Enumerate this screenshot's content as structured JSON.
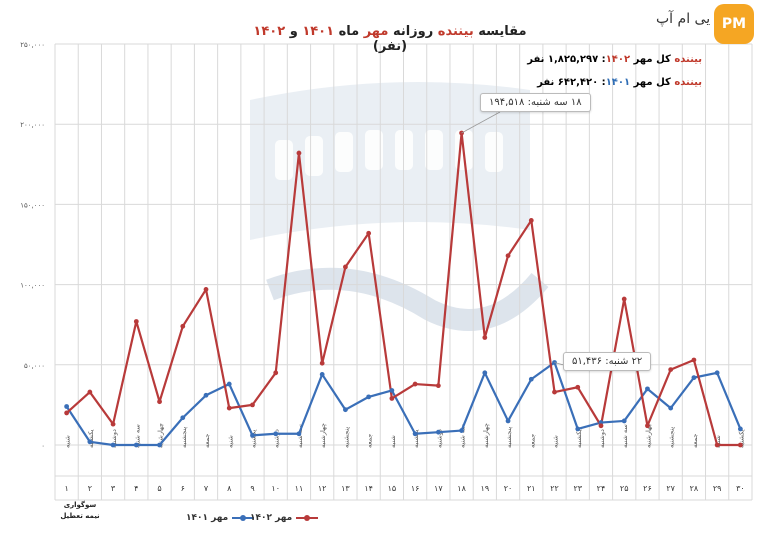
{
  "header": {
    "logo_text": "یی ام آپ",
    "logo_badge": "PM",
    "title_part1": "مقایسه ",
    "title_part2": "بیننده",
    "title_part3": " روزانه ",
    "title_part4": "مهر",
    "title_part5": " ماه ",
    "title_part6": "۱۴۰۱",
    "title_part7": " و ",
    "title_part8": "۱۴۰۲",
    "title_part9": " (نفر)"
  },
  "totals": {
    "total_1402_label": "بیننده",
    "total_1402_text": " کل مهر ",
    "total_1402_year": "۱۴۰۲",
    "total_1402_value": ": ۱,۸۲۵,۲۹۷ نفر",
    "total_1401_label": "بیننده",
    "total_1401_text": " کل مهر ",
    "total_1401_year": "۱۴۰۱",
    "total_1401_value": ": ۶۴۲,۴۲۰ نفر"
  },
  "callouts": {
    "max_1402": "۱۸ سه شنبه: ۱۹۴,۵۱۸",
    "max_1401": "۲۲ شنبه: ۵۱,۴۳۶"
  },
  "holiday": {
    "line1": "سوگواری",
    "line2": "نیمه تعطیل"
  },
  "legend": {
    "s1401": "مهر ۱۴۰۱",
    "s1402": "مهر ۱۴۰۲"
  },
  "colors": {
    "s1401": "#3a6fb8",
    "s1402": "#b83a3a",
    "grid": "#d9d9d9",
    "accent_red": "#c0392b",
    "watermark": "#dfe6ee"
  },
  "chart_data": {
    "type": "line",
    "ylim": [
      0,
      250000
    ],
    "yticks": [
      "۰",
      "۵۰,۰۰۰",
      "۱۰۰,۰۰۰",
      "۱۵۰,۰۰۰",
      "۲۰۰,۰۰۰",
      "۲۵۰,۰۰۰"
    ],
    "ytick_values": [
      0,
      50000,
      100000,
      150000,
      200000,
      250000
    ],
    "weekdays": [
      "شنبه",
      "یکشنبه",
      "دوشنبه",
      "سه شنبه",
      "چهارشنبه",
      "پنجشنبه",
      "جمعه",
      "شنبه",
      "یکشنبه",
      "دوشنبه",
      "سه شنبه",
      "چهارشنبه",
      "پنجشنبه",
      "جمعه",
      "شنبه",
      "یکشنبه",
      "دوشنبه",
      "سه شنبه",
      "چهارشنبه",
      "پنجشنبه",
      "جمعه",
      "شنبه",
      "یکشنبه",
      "دوشنبه",
      "سه شنبه",
      "چهارشنبه",
      "پنجشنبه",
      "جمعه",
      "شنبه",
      "یکشنبه"
    ],
    "days": [
      "۱",
      "۲",
      "۳",
      "۴",
      "۵",
      "۶",
      "۷",
      "۸",
      "۹",
      "۱۰",
      "۱۱",
      "۱۲",
      "۱۳",
      "۱۴",
      "۱۵",
      "۱۶",
      "۱۷",
      "۱۸",
      "۱۹",
      "۲۰",
      "۲۱",
      "۲۲",
      "۲۳",
      "۲۴",
      "۲۵",
      "۲۶",
      "۲۷",
      "۲۸",
      "۲۹",
      "۳۰"
    ],
    "series": [
      {
        "name": "مهر ۱۴۰۱",
        "values": [
          24000,
          2000,
          0,
          0,
          0,
          17000,
          31000,
          38000,
          6000,
          7000,
          7000,
          44000,
          22000,
          30000,
          34000,
          7000,
          8000,
          9000,
          45000,
          15000,
          41000,
          51436,
          10000,
          14000,
          15000,
          35000,
          23000,
          42000,
          45000,
          10000
        ]
      },
      {
        "name": "مهر ۱۴۰۲",
        "values": [
          20000,
          33000,
          13000,
          77000,
          27000,
          74000,
          97000,
          23000,
          25000,
          45000,
          182000,
          51000,
          111000,
          132000,
          29000,
          38000,
          37000,
          194518,
          67000,
          118000,
          140000,
          33000,
          36000,
          12000,
          91000,
          12000,
          47000,
          53000,
          0,
          0
        ]
      }
    ]
  }
}
